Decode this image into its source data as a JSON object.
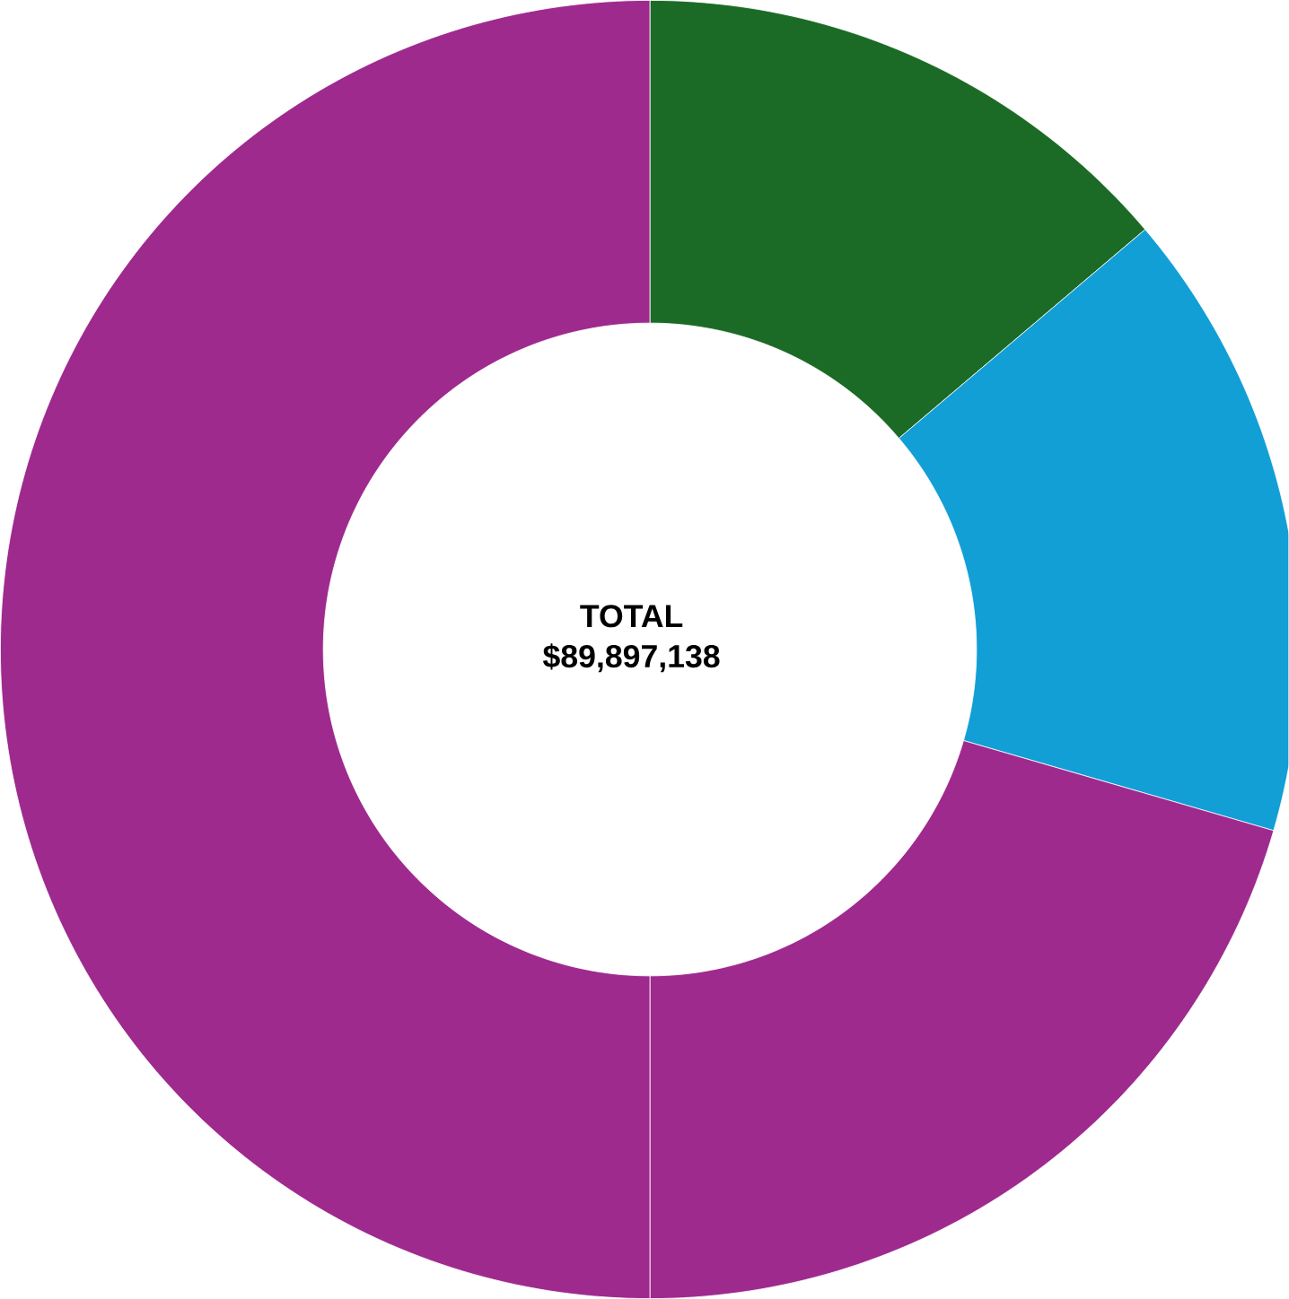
{
  "chart_data": {
    "type": "donut",
    "title": "TOTAL",
    "subtitle": "$89,897,138",
    "categories": [
      null,
      null,
      null,
      null
    ],
    "values": [
      13.8,
      15.7,
      20.5,
      50.0
    ],
    "colors": [
      "#1b6b26",
      "#119fd6",
      "#9e2a8e",
      "#9e2a8e"
    ]
  }
}
